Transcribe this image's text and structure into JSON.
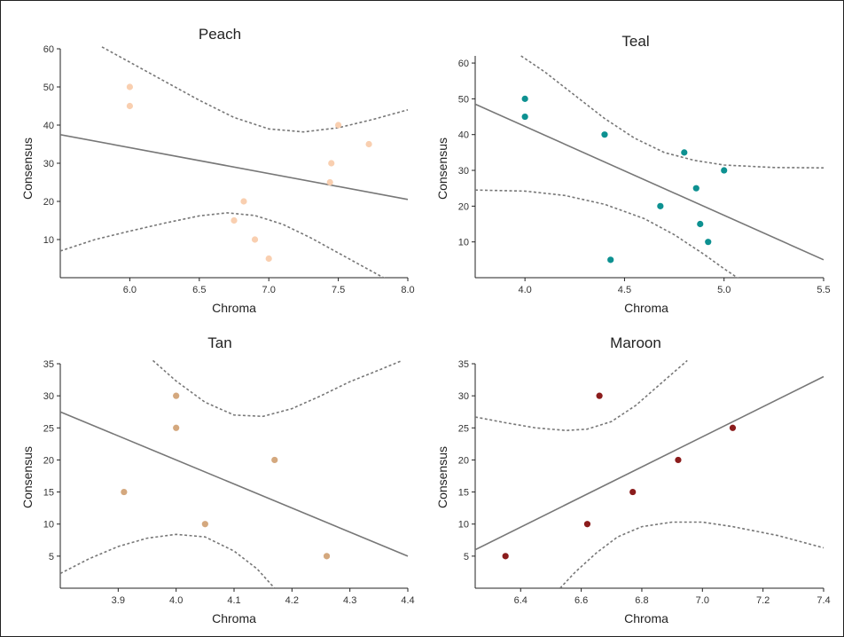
{
  "chart_data": [
    {
      "type": "scatter",
      "title": "Peach",
      "xlabel": "Chroma",
      "ylabel": "Consensus",
      "xlim": [
        5.5,
        8.0
      ],
      "ylim": [
        0,
        60
      ],
      "xticks": [
        6.0,
        6.5,
        7.0,
        7.5,
        8.0
      ],
      "xtick_labels": [
        "6.0",
        "6.5",
        "7.0",
        "7.5",
        "8.0"
      ],
      "yticks": [
        10,
        20,
        30,
        40,
        50,
        60
      ],
      "ytick_labels": [
        "10",
        "20",
        "30",
        "40",
        "50",
        "60"
      ],
      "color": "#f9cfb0",
      "points": [
        {
          "x": 6.0,
          "y": 50
        },
        {
          "x": 6.0,
          "y": 45
        },
        {
          "x": 6.75,
          "y": 15
        },
        {
          "x": 6.82,
          "y": 20
        },
        {
          "x": 6.9,
          "y": 10
        },
        {
          "x": 7.0,
          "y": 5
        },
        {
          "x": 7.44,
          "y": 25
        },
        {
          "x": 7.45,
          "y": 30
        },
        {
          "x": 7.5,
          "y": 40
        },
        {
          "x": 7.72,
          "y": 35
        }
      ],
      "fit_line": [
        [
          5.5,
          37.5
        ],
        [
          8.0,
          20.5
        ]
      ],
      "band_upper": [
        [
          5.8,
          60.5
        ],
        [
          6.0,
          56.5
        ],
        [
          6.25,
          51.5
        ],
        [
          6.5,
          46.5
        ],
        [
          6.75,
          42
        ],
        [
          7.0,
          39
        ],
        [
          7.25,
          38.2
        ],
        [
          7.5,
          39.3
        ],
        [
          7.75,
          41.5
        ],
        [
          8.0,
          44
        ]
      ],
      "band_lower": [
        [
          5.5,
          7
        ],
        [
          5.75,
          10
        ],
        [
          6.0,
          12.2
        ],
        [
          6.25,
          14.3
        ],
        [
          6.5,
          16.2
        ],
        [
          6.7,
          17
        ],
        [
          6.9,
          16.3
        ],
        [
          7.1,
          14
        ],
        [
          7.3,
          10.5
        ],
        [
          7.5,
          6.5
        ],
        [
          7.7,
          2.5
        ],
        [
          7.85,
          -0.5
        ]
      ]
    },
    {
      "type": "scatter",
      "title": "Teal",
      "xlabel": "Chroma",
      "ylabel": "Consensus",
      "xlim": [
        3.75,
        5.5
      ],
      "ylim": [
        0,
        62
      ],
      "xticks": [
        4.0,
        4.5,
        5.0,
        5.5
      ],
      "xtick_labels": [
        "4.0",
        "4.5",
        "5.0",
        "5.5"
      ],
      "yticks": [
        10,
        20,
        30,
        40,
        50,
        60
      ],
      "ytick_labels": [
        "10",
        "20",
        "30",
        "40",
        "50",
        "60"
      ],
      "color": "#0d9191",
      "points": [
        {
          "x": 4.0,
          "y": 50
        },
        {
          "x": 4.0,
          "y": 45
        },
        {
          "x": 4.4,
          "y": 40
        },
        {
          "x": 4.43,
          "y": 5
        },
        {
          "x": 4.68,
          "y": 20
        },
        {
          "x": 4.8,
          "y": 35
        },
        {
          "x": 4.86,
          "y": 25
        },
        {
          "x": 4.88,
          "y": 15
        },
        {
          "x": 4.92,
          "y": 10
        },
        {
          "x": 5.0,
          "y": 30
        }
      ],
      "fit_line": [
        [
          3.75,
          48.5
        ],
        [
          5.5,
          5
        ]
      ],
      "band_upper": [
        [
          3.98,
          62
        ],
        [
          4.1,
          57.5
        ],
        [
          4.25,
          51
        ],
        [
          4.4,
          44.5
        ],
        [
          4.55,
          39
        ],
        [
          4.7,
          35
        ],
        [
          4.85,
          32.8
        ],
        [
          5.0,
          31.5
        ],
        [
          5.25,
          30.8
        ],
        [
          5.5,
          30.7
        ]
      ],
      "band_lower": [
        [
          3.75,
          24.5
        ],
        [
          4.0,
          24.2
        ],
        [
          4.2,
          23
        ],
        [
          4.4,
          20.5
        ],
        [
          4.6,
          16.5
        ],
        [
          4.75,
          12
        ],
        [
          4.9,
          6.5
        ],
        [
          5.0,
          2.5
        ],
        [
          5.08,
          -0.5
        ]
      ]
    },
    {
      "type": "scatter",
      "title": "Tan",
      "xlabel": "Chroma",
      "ylabel": "Consensus",
      "xlim": [
        3.8,
        4.4
      ],
      "ylim": [
        0,
        35
      ],
      "xticks": [
        3.9,
        4.0,
        4.1,
        4.2,
        4.3,
        4.4
      ],
      "xtick_labels": [
        "3.9",
        "4.0",
        "4.1",
        "4.2",
        "4.3",
        "4.4"
      ],
      "yticks": [
        5,
        10,
        15,
        20,
        25,
        30,
        35
      ],
      "ytick_labels": [
        "5",
        "10",
        "15",
        "20",
        "25",
        "30",
        "35"
      ],
      "color": "#d4a87e",
      "points": [
        {
          "x": 3.91,
          "y": 15
        },
        {
          "x": 4.0,
          "y": 30
        },
        {
          "x": 4.0,
          "y": 25
        },
        {
          "x": 4.05,
          "y": 10
        },
        {
          "x": 4.17,
          "y": 20
        },
        {
          "x": 4.26,
          "y": 5
        }
      ],
      "fit_line": [
        [
          3.8,
          27.5
        ],
        [
          4.4,
          5
        ]
      ],
      "band_upper": [
        [
          3.96,
          35.5
        ],
        [
          4.0,
          32.3
        ],
        [
          4.05,
          29
        ],
        [
          4.1,
          27
        ],
        [
          4.15,
          26.8
        ],
        [
          4.2,
          28
        ],
        [
          4.25,
          30
        ],
        [
          4.3,
          32.2
        ],
        [
          4.35,
          34
        ],
        [
          4.39,
          35.5
        ]
      ],
      "band_lower": [
        [
          3.8,
          2.3
        ],
        [
          3.85,
          4.6
        ],
        [
          3.9,
          6.5
        ],
        [
          3.95,
          7.8
        ],
        [
          4.0,
          8.4
        ],
        [
          4.05,
          8
        ],
        [
          4.1,
          5.8
        ],
        [
          4.14,
          3
        ],
        [
          4.17,
          0
        ]
      ]
    },
    {
      "type": "scatter",
      "title": "Maroon",
      "xlabel": "Chroma",
      "ylabel": "Consensus",
      "xlim": [
        6.25,
        7.4
      ],
      "ylim": [
        0,
        35
      ],
      "xticks": [
        6.4,
        6.6,
        6.8,
        7.0,
        7.2,
        7.4
      ],
      "xtick_labels": [
        "6.4",
        "6.6",
        "6.8",
        "7.0",
        "7.2",
        "7.4"
      ],
      "yticks": [
        5,
        10,
        15,
        20,
        25,
        30,
        35
      ],
      "ytick_labels": [
        "5",
        "10",
        "15",
        "20",
        "25",
        "30",
        "35"
      ],
      "color": "#8b1c1c",
      "points": [
        {
          "x": 6.35,
          "y": 5
        },
        {
          "x": 6.62,
          "y": 10
        },
        {
          "x": 6.66,
          "y": 30
        },
        {
          "x": 6.77,
          "y": 15
        },
        {
          "x": 6.92,
          "y": 20
        },
        {
          "x": 7.1,
          "y": 25
        }
      ],
      "fit_line": [
        [
          6.25,
          6
        ],
        [
          7.4,
          33
        ]
      ],
      "band_upper": [
        [
          6.25,
          26.7
        ],
        [
          6.35,
          25.8
        ],
        [
          6.45,
          25
        ],
        [
          6.55,
          24.6
        ],
        [
          6.62,
          24.8
        ],
        [
          6.7,
          26
        ],
        [
          6.78,
          28.5
        ],
        [
          6.86,
          31.8
        ],
        [
          6.95,
          35.5
        ]
      ],
      "band_lower": [
        [
          6.53,
          0
        ],
        [
          6.58,
          2.5
        ],
        [
          6.65,
          5.5
        ],
        [
          6.72,
          8
        ],
        [
          6.8,
          9.6
        ],
        [
          6.9,
          10.3
        ],
        [
          7.0,
          10.3
        ],
        [
          7.1,
          9.6
        ],
        [
          7.25,
          8.2
        ],
        [
          7.4,
          6.3
        ]
      ]
    }
  ]
}
